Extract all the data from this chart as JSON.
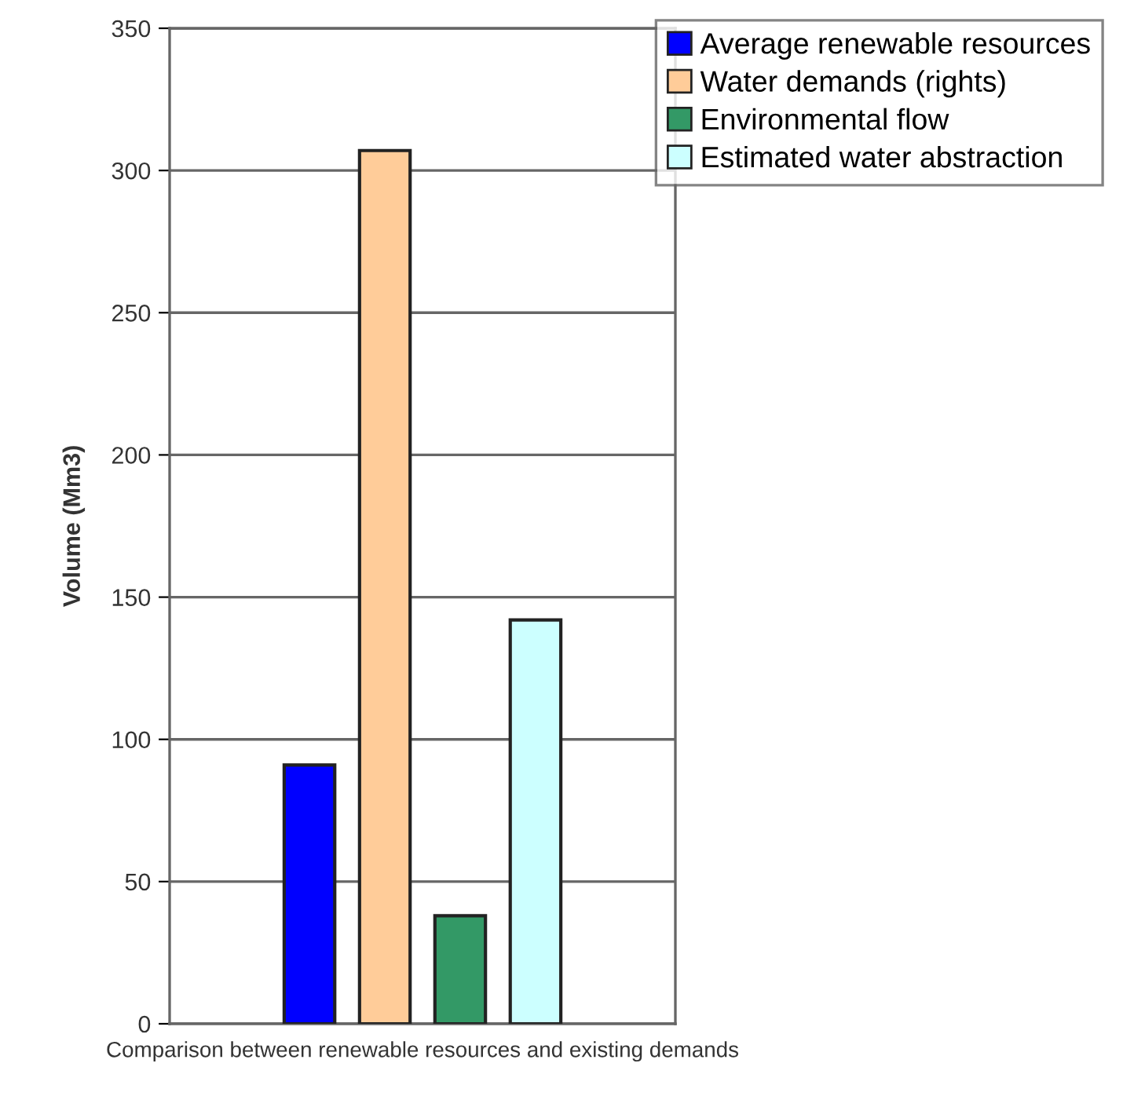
{
  "chart_data": {
    "type": "bar",
    "ylabel": "Volume (Mm3)",
    "categories": [
      "Comparison between renewable resources and existing demands"
    ],
    "series": [
      {
        "name": "Average renewable resources",
        "color": "#0000ff",
        "values": [
          91
        ]
      },
      {
        "name": "Water demands (rights)",
        "color": "#ffcc99",
        "values": [
          307
        ]
      },
      {
        "name": "Environmental flow",
        "color": "#339966",
        "values": [
          38
        ]
      },
      {
        "name": "Estimated water abstraction",
        "color": "#ccffff",
        "values": [
          142
        ]
      }
    ],
    "ylim": [
      0,
      350
    ],
    "yticks": [
      0,
      50,
      100,
      150,
      200,
      250,
      300,
      350
    ],
    "grid": "y",
    "legend": "top right"
  }
}
